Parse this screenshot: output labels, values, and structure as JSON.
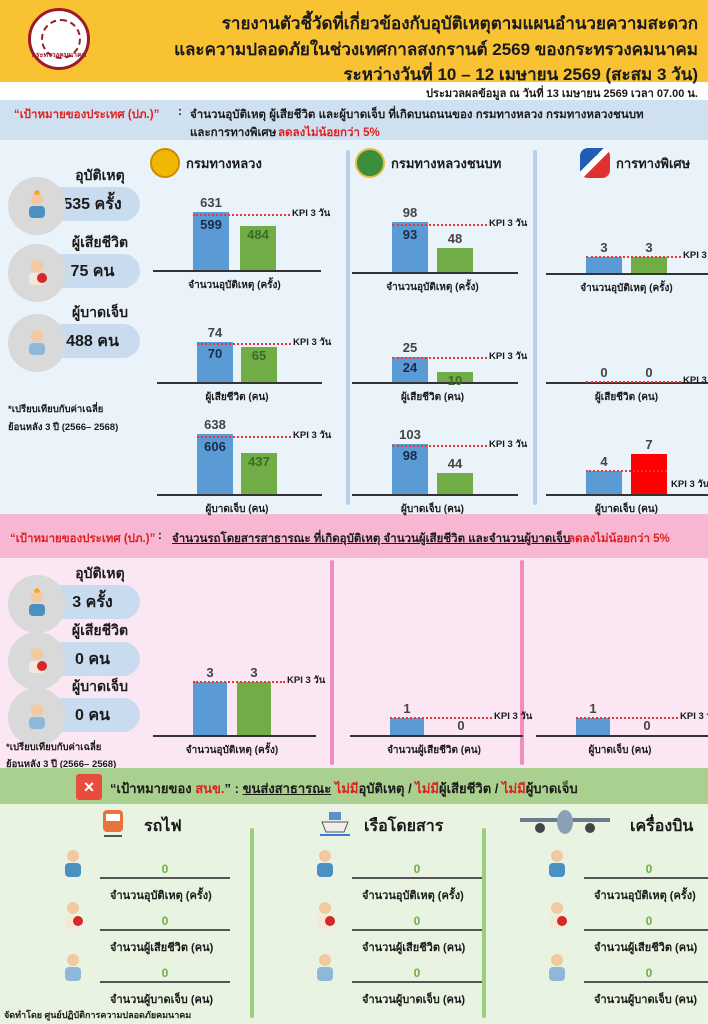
{
  "header": {
    "logo_text": "กระทรวงคมนาคม",
    "title_lines": [
      "รายงานตัวชี้วัดที่เกี่ยวข้องกับอุบัติเหตุตามแผนอำนวยความสะดวก",
      "และความปลอดภัยในช่วงเทศกาลสงกรานต์ 2569 ของกระทรวงคมนาคม",
      "ระหว่างวันที่ 10 – 12 เมษายน 2569 (สะสม 3 วัน)"
    ],
    "processed_note": "ประมวลผลข้อมูล ณ วันที่ 13 เมษายน 2569 เวลา 07.00 น."
  },
  "kpi_label": "KPI 3 วัน",
  "colors": {
    "header": "#f9c233",
    "avg_bar": "#5b9bd5",
    "ok_bar": "#70ad47",
    "over_bar": "#ff0000",
    "kpi_line": "#e53935",
    "road_band": "#cfe0f0",
    "public_band": "#f7b6d2",
    "onsp_band": "#a9d08e"
  },
  "road": {
    "goal_label": "“เป้าหมายของประเทศ (ปภ.)”",
    "colon": ":",
    "goal_text": "จำนวนอุบัติเหตุ ผู้เสียชีวิต และผู้บาดเจ็บ ที่เกิดบนถนนของ กรมทางหลวง กรมทางหลวงชนบท",
    "goal_text2": "และการทางพิเศษ",
    "goal_highlight": "ลดลงไม่น้อยกว่า 5%",
    "summary": [
      {
        "label": "อุบัติเหตุ",
        "value": "535 ครั้ง",
        "icon": "car-crash-icon"
      },
      {
        "label": "ผู้เสียชีวิต",
        "value": "75 คน",
        "icon": "fallen-person-icon"
      },
      {
        "label": "ผู้บาดเจ็บ",
        "value": "488 คน",
        "icon": "injured-person-icon"
      }
    ],
    "note": [
      "*เปรียบเทียบกับค่าเฉลี่ย",
      "ย้อนหลัง 3 ปี (2566– 2568)"
    ],
    "agencies": [
      "กรมทางหลวง",
      "กรมทางหลวงชนบท",
      "การทางพิเศษ"
    ]
  },
  "public": {
    "goal_label": "“เป้าหมายของประเทศ (ปภ.)”",
    "colon": ":",
    "goal_text": "จำนวนรถโดยสารสาธารณะ ที่เกิดอุบัติเหตุ จำนวนผู้เสียชีวิต และจำนวนผู้บาดเจ็บ",
    "goal_highlight": "ลดลงไม่น้อยกว่า 5%",
    "summary": [
      {
        "label": "อุบัติเหตุ",
        "value": "3 ครั้ง",
        "icon": "car-crash-icon"
      },
      {
        "label": "ผู้เสียชีวิต",
        "value": "0 คน",
        "icon": "fallen-person-icon"
      },
      {
        "label": "ผู้บาดเจ็บ",
        "value": "0 คน",
        "icon": "injured-person-icon"
      }
    ],
    "note": [
      "*เปรียบเทียบกับค่าเฉลี่ย",
      "ย้อนหลัง 3 ปี (2566– 2568)"
    ]
  },
  "onsp": {
    "x": "×",
    "goal_label_a": "“เป้าหมายของ ",
    "goal_label_b": "สนข.",
    "goal_label_c": "” :",
    "goal_sub": "ขนส่งสาธารณะ",
    "no": "ไม่มี",
    "t1": "อุบัติเหตุ / ",
    "t2": "ผู้เสียชีวิต / ",
    "t3": "ผู้บาดเจ็บ",
    "modes": [
      {
        "name": "รถไฟ",
        "icon": "train-icon",
        "rows": [
          {
            "label": "จำนวนอุบัติเหตุ (ครั้ง)",
            "value": "0"
          },
          {
            "label": "จำนวนผู้เสียชีวิต (คน)",
            "value": "0"
          },
          {
            "label": "จำนวนผู้บาดเจ็บ (คน)",
            "value": "0"
          }
        ]
      },
      {
        "name": "เรือโดยสาร",
        "icon": "ship-icon",
        "rows": [
          {
            "label": "จำนวนอุบัติเหตุ (ครั้ง)",
            "value": "0"
          },
          {
            "label": "จำนวนผู้เสียชีวิต (คน)",
            "value": "0"
          },
          {
            "label": "จำนวนผู้บาดเจ็บ (คน)",
            "value": "0"
          }
        ]
      },
      {
        "name": "เครื่องบิน",
        "icon": "airplane-icon",
        "rows": [
          {
            "label": "จำนวนอุบัติเหตุ (ครั้ง)",
            "value": "0"
          },
          {
            "label": "จำนวนผู้เสียชีวิต (คน)",
            "value": "0"
          },
          {
            "label": "จำนวนผู้บาดเจ็บ (คน)",
            "value": "0"
          }
        ]
      }
    ]
  },
  "footer": "จัดทำโดย ศูนย์ปฏิบัติการความปลอดภัยคมนาคม",
  "chart_data": [
    {
      "type": "bar",
      "group": "กรมทางหลวง",
      "xlabel": "จำนวนอุบัติเหตุ (ครั้ง)",
      "average": 631,
      "kpi": 599,
      "current": 484
    },
    {
      "type": "bar",
      "group": "กรมทางหลวง",
      "xlabel": "ผู้เสียชีวิต (คน)",
      "average": 74,
      "kpi": 70,
      "current": 65
    },
    {
      "type": "bar",
      "group": "กรมทางหลวง",
      "xlabel": "ผู้บาดเจ็บ (คน)",
      "average": 638,
      "kpi": 606,
      "current": 437
    },
    {
      "type": "bar",
      "group": "กรมทางหลวงชนบท",
      "xlabel": "จำนวนอุบัติเหตุ (ครั้ง)",
      "average": 98,
      "kpi": 93,
      "current": 48
    },
    {
      "type": "bar",
      "group": "กรมทางหลวงชนบท",
      "xlabel": "ผู้เสียชีวิต (คน)",
      "average": 25,
      "kpi": 24,
      "current": 10
    },
    {
      "type": "bar",
      "group": "กรมทางหลวงชนบท",
      "xlabel": "ผู้บาดเจ็บ (คน)",
      "average": 103,
      "kpi": 98,
      "current": 44
    },
    {
      "type": "bar",
      "group": "การทางพิเศษ",
      "xlabel": "จำนวนอุบัติเหตุ (ครั้ง)",
      "average": 3,
      "current": 3
    },
    {
      "type": "bar",
      "group": "การทางพิเศษ",
      "xlabel": "ผู้เสียชีวิต (คน)",
      "average": 0,
      "current": 0
    },
    {
      "type": "bar",
      "group": "การทางพิเศษ",
      "xlabel": "ผู้บาดเจ็บ (คน)",
      "average": 4,
      "current": 7,
      "exceeds_kpi": true
    },
    {
      "type": "bar",
      "group": "รถโดยสารสาธารณะ",
      "xlabel": "จำนวนอุบัติเหตุ (ครั้ง)",
      "average": 3,
      "current": 3
    },
    {
      "type": "bar",
      "group": "รถโดยสารสาธารณะ",
      "xlabel": "จำนวนผู้เสียชีวิต (คน)",
      "average": 1,
      "current": 0
    },
    {
      "type": "bar",
      "group": "รถโดยสารสาธารณะ",
      "xlabel": "ผู้บาดเจ็บ (คน)",
      "average": 1,
      "current": 0
    }
  ]
}
